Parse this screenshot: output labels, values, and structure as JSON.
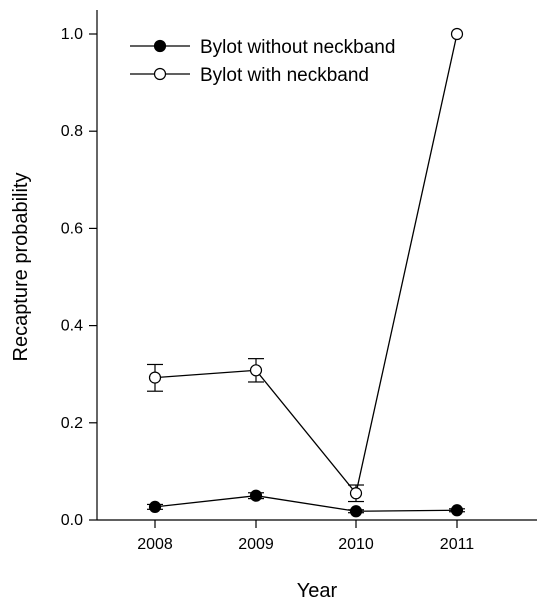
{
  "chart_data": {
    "type": "line",
    "title": "",
    "xlabel": "Year",
    "ylabel": "Recapture probability",
    "categories": [
      "2008",
      "2009",
      "2010",
      "2011"
    ],
    "ylim": [
      0,
      1.0
    ],
    "yticks": [
      "0.0",
      "0.2",
      "0.4",
      "0.6",
      "0.8",
      "1.0"
    ],
    "grid": false,
    "legend_position": "top-left",
    "series": [
      {
        "name": "Bylot without neckband",
        "marker": "filled-circle",
        "color": "#000000",
        "values": [
          0.027,
          0.05,
          0.018,
          0.02
        ],
        "err_low": [
          0.022,
          0.044,
          0.015,
          0.017
        ],
        "err_high": [
          0.032,
          0.056,
          0.021,
          0.023
        ]
      },
      {
        "name": "Bylot with neckband",
        "marker": "open-circle",
        "color": "#000000",
        "values": [
          0.293,
          0.308,
          0.055,
          1.0
        ],
        "err_low": [
          0.265,
          0.284,
          0.038,
          1.0
        ],
        "err_high": [
          0.32,
          0.332,
          0.072,
          1.0
        ]
      }
    ]
  }
}
